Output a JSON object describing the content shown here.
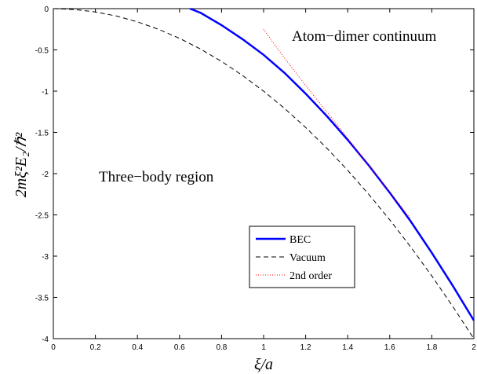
{
  "chart_data": {
    "type": "line",
    "xlabel": "ξ/a",
    "ylabel": "2mξ²E₂/ℏ²",
    "xlim": [
      0,
      2
    ],
    "ylim": [
      -4,
      0
    ],
    "x_ticks": [
      "0",
      "0.2",
      "0.4",
      "0.6",
      "0.8",
      "1",
      "1.2",
      "1.4",
      "1.6",
      "1.8",
      "2"
    ],
    "y_ticks": [
      "0",
      "-0.5",
      "-1",
      "-1.5",
      "-2",
      "-2.5",
      "-3",
      "-3.5",
      "-4"
    ],
    "grid": false,
    "legend_position": "lower-right",
    "annotations": [
      "Atom−dimer continuum",
      "Three−body region"
    ],
    "series": [
      {
        "name": "BEC",
        "color": "#0000ff",
        "style": "solid",
        "x": [
          0.65,
          0.7,
          0.8,
          0.9,
          1.0,
          1.1,
          1.2,
          1.3,
          1.4,
          1.5,
          1.6,
          1.7,
          1.8,
          1.9,
          2.0
        ],
        "y": [
          0.0,
          -0.05,
          -0.2,
          -0.37,
          -0.56,
          -0.78,
          -1.03,
          -1.3,
          -1.59,
          -1.9,
          -2.23,
          -2.58,
          -2.96,
          -3.36,
          -3.78
        ]
      },
      {
        "name": "Vacuum",
        "color": "#000000",
        "style": "dashed",
        "x": [
          0.0,
          0.1,
          0.2,
          0.3,
          0.4,
          0.5,
          0.6,
          0.7,
          0.8,
          0.9,
          1.0,
          1.1,
          1.2,
          1.3,
          1.4,
          1.5,
          1.6,
          1.7,
          1.8,
          1.9,
          2.0
        ],
        "y": [
          0.0,
          -0.01,
          -0.04,
          -0.09,
          -0.16,
          -0.25,
          -0.36,
          -0.49,
          -0.64,
          -0.81,
          -1.0,
          -1.21,
          -1.44,
          -1.69,
          -1.96,
          -2.25,
          -2.56,
          -2.89,
          -3.24,
          -3.61,
          -4.0
        ]
      },
      {
        "name": "2nd order",
        "color": "#ff0000",
        "style": "dotted",
        "x": [
          1.0,
          1.05,
          1.1,
          1.2,
          1.3,
          1.4,
          1.5,
          1.6,
          1.7
        ],
        "y": [
          -0.25,
          -0.43,
          -0.6,
          -0.93,
          -1.25,
          -1.57,
          -1.9,
          -2.22,
          -2.55
        ]
      }
    ]
  }
}
